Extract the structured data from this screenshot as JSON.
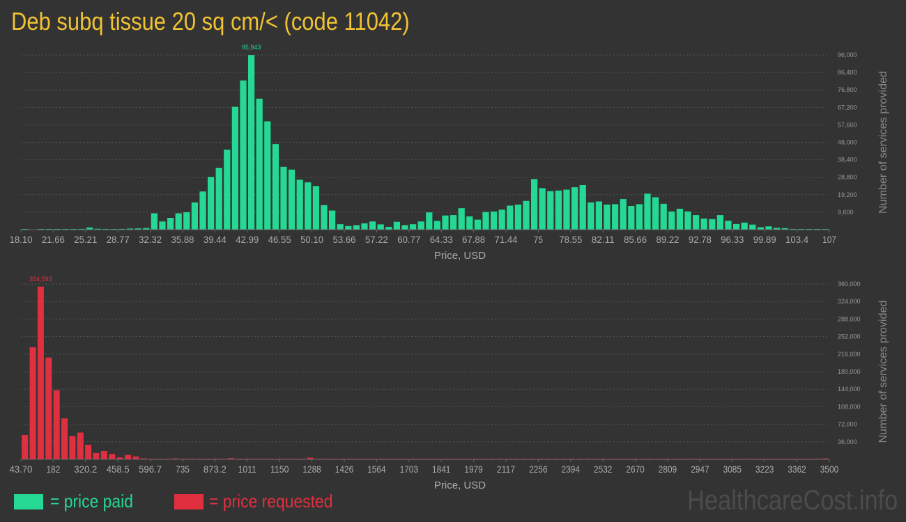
{
  "title": "Deb subq tissue 20 sq cm/< (code 11042)",
  "legend": {
    "paid_label": "= price paid",
    "requested_label": "= price requested",
    "paid_color": "#25d994",
    "requested_color": "#e03040"
  },
  "watermark": "HealthcareCost.info",
  "chart_data": [
    {
      "type": "bar",
      "name": "price paid",
      "color": "#25d994",
      "xlabel": "Price, USD",
      "ylabel": "Number of services provided",
      "ylim": [
        0,
        96000
      ],
      "yticks": [
        "9,600",
        "19,200",
        "28,800",
        "38,400",
        "48,000",
        "57,600",
        "67,200",
        "76,800",
        "86,400",
        "96,000"
      ],
      "xticks": [
        "18.10",
        "21.66",
        "25.21",
        "28.77",
        "32.32",
        "35.88",
        "39.44",
        "42.99",
        "46.55",
        "50.10",
        "53.66",
        "57.22",
        "60.77",
        "64.33",
        "67.88",
        "71.44",
        "75",
        "78.55",
        "82.11",
        "85.66",
        "89.22",
        "92.78",
        "96.33",
        "99.89",
        "103.4",
        "107"
      ],
      "peak_label": "95,943",
      "grid": true,
      "values": [
        300,
        0,
        200,
        150,
        250,
        200,
        300,
        400,
        1200,
        500,
        400,
        300,
        400,
        600,
        700,
        900,
        9000,
        4500,
        6500,
        9000,
        9600,
        15000,
        21000,
        29000,
        34000,
        44000,
        67500,
        82000,
        95943,
        72000,
        59500,
        47000,
        34500,
        33000,
        27500,
        26000,
        24000,
        13500,
        10500,
        3000,
        2000,
        2500,
        3500,
        4500,
        2900,
        1500,
        4300,
        2500,
        3000,
        4500,
        9500,
        4800,
        7800,
        8000,
        11800,
        7300,
        5500,
        9700,
        10000,
        11000,
        13200,
        13800,
        15800,
        27800,
        22800,
        21200,
        21500,
        22000,
        23300,
        24500,
        15000,
        15500,
        13800,
        14000,
        16800,
        13000,
        14000,
        19800,
        17800,
        14200,
        10000,
        11500,
        10000,
        8000,
        6100,
        5800,
        8000,
        4900,
        3100,
        3900,
        2800,
        1300,
        1800,
        1000,
        800,
        400,
        300,
        200,
        100,
        50
      ]
    },
    {
      "type": "bar",
      "name": "price requested",
      "color": "#e03040",
      "xlabel": "Price, USD",
      "ylabel": "Number of services provided",
      "ylim": [
        0,
        360000
      ],
      "yticks": [
        "36,000",
        "72,000",
        "108,000",
        "144,000",
        "180,000",
        "216,000",
        "252,000",
        "288,000",
        "324,000",
        "360,000"
      ],
      "xticks": [
        "43.70",
        "182",
        "320.2",
        "458.5",
        "596.7",
        "735",
        "873.2",
        "1011",
        "1150",
        "1288",
        "1426",
        "1564",
        "1703",
        "1841",
        "1979",
        "2117",
        "2256",
        "2394",
        "2532",
        "2670",
        "2809",
        "2947",
        "3085",
        "3223",
        "3362",
        "3500"
      ],
      "peak_label": "354,593",
      "grid": true,
      "values": [
        50000,
        230000,
        354593,
        209000,
        142000,
        84000,
        48000,
        55000,
        30000,
        13000,
        17000,
        11000,
        4000,
        9000,
        6000,
        2000,
        1000,
        1000,
        500,
        2000,
        500,
        1500,
        800,
        1000,
        1500,
        1000,
        2500,
        1000,
        1500,
        500,
        1500,
        500,
        600,
        1500,
        600,
        300,
        3500,
        1200,
        400,
        300,
        1200,
        200,
        100,
        200,
        800,
        200,
        200,
        100,
        100,
        300,
        100,
        100,
        100,
        800,
        200,
        100,
        100,
        50,
        50,
        100,
        100,
        100,
        50,
        50,
        50,
        1000,
        100,
        100,
        100,
        100,
        100,
        50,
        50,
        50,
        200,
        200,
        1200,
        300,
        50,
        50,
        50,
        100,
        200,
        50,
        50,
        50,
        50,
        50,
        50,
        50,
        50,
        50,
        50,
        50,
        50,
        50,
        50,
        50,
        50,
        100,
        1200,
        2000
      ]
    }
  ]
}
